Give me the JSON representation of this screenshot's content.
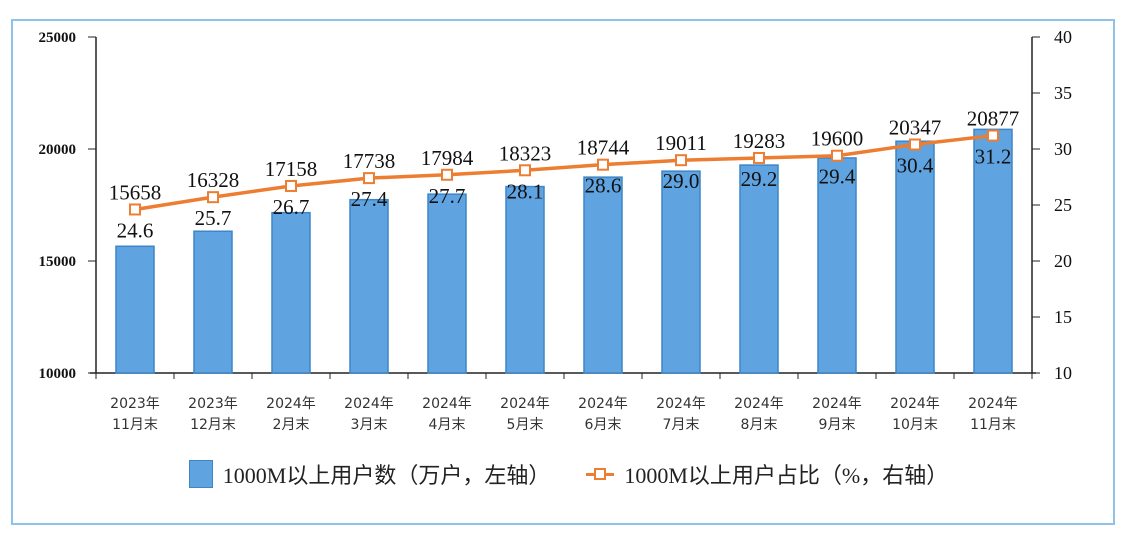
{
  "chart_data": {
    "type": "bar+line",
    "categories": [
      "2023年\n11月末",
      "2023年\n12月末",
      "2024年\n2月末",
      "2024年\n3月末",
      "2024年\n4月末",
      "2024年\n5月末",
      "2024年\n6月末",
      "2024年\n7月末",
      "2024年\n8月末",
      "2024年\n9月末",
      "2024年\n10月末",
      "2024年\n11月末"
    ],
    "series": [
      {
        "name": "1000M以上用户数（万户，左轴）",
        "type": "bar",
        "axis": "left",
        "color": "#5fa3e0",
        "values": [
          15658,
          16328,
          17158,
          17738,
          17984,
          18323,
          18744,
          19011,
          19283,
          19600,
          20347,
          20877
        ]
      },
      {
        "name": "1000M以上用户占比（%，右轴）",
        "type": "line",
        "axis": "right",
        "color": "#ed7d31",
        "values": [
          24.6,
          25.7,
          26.7,
          27.4,
          27.7,
          28.1,
          28.6,
          29.0,
          29.2,
          29.4,
          30.4,
          31.2
        ]
      }
    ],
    "left_axis": {
      "min": 10000,
      "max": 25000,
      "ticks": [
        10000,
        15000,
        20000,
        25000
      ]
    },
    "right_axis": {
      "min": 10,
      "max": 40,
      "ticks": [
        10,
        15,
        20,
        25,
        30,
        35,
        40
      ]
    },
    "legend_position": "bottom",
    "grid": false
  }
}
